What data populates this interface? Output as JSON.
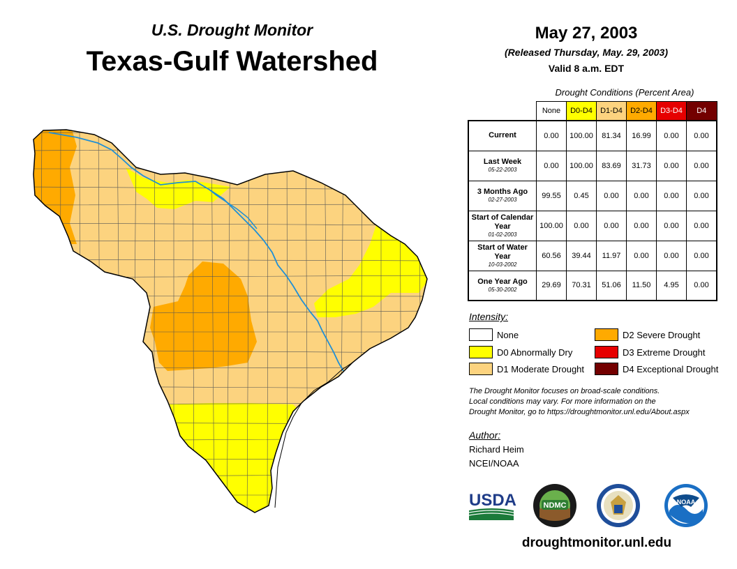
{
  "header": {
    "subtitle": "U.S. Drought Monitor",
    "title": "Texas-Gulf Watershed",
    "date": "May 27, 2003",
    "released": "(Released Thursday, May. 29, 2003)",
    "valid": "Valid 8 a.m. EDT"
  },
  "table": {
    "caption": "Drought Conditions (Percent Area)",
    "columns": [
      {
        "label": "None",
        "color": "#ffffff",
        "text_color": "#000000"
      },
      {
        "label": "D0-D4",
        "color": "#ffff00",
        "text_color": "#000000"
      },
      {
        "label": "D1-D4",
        "color": "#fcd37f",
        "text_color": "#000000"
      },
      {
        "label": "D2-D4",
        "color": "#ffaa00",
        "text_color": "#000000"
      },
      {
        "label": "D3-D4",
        "color": "#e60000",
        "text_color": "#ffffff"
      },
      {
        "label": "D4",
        "color": "#730000",
        "text_color": "#ffffff"
      }
    ],
    "rows": [
      {
        "label": "Current",
        "date": "",
        "values": [
          "0.00",
          "100.00",
          "81.34",
          "16.99",
          "0.00",
          "0.00"
        ]
      },
      {
        "label": "Last Week",
        "date": "05-22-2003",
        "values": [
          "0.00",
          "100.00",
          "83.69",
          "31.73",
          "0.00",
          "0.00"
        ]
      },
      {
        "label": "3 Months Ago",
        "date": "02-27-2003",
        "values": [
          "99.55",
          "0.45",
          "0.00",
          "0.00",
          "0.00",
          "0.00"
        ]
      },
      {
        "label": "Start of Calendar Year",
        "date": "01-02-2003",
        "values": [
          "100.00",
          "0.00",
          "0.00",
          "0.00",
          "0.00",
          "0.00"
        ]
      },
      {
        "label": "Start of Water Year",
        "date": "10-03-2002",
        "values": [
          "60.56",
          "39.44",
          "11.97",
          "0.00",
          "0.00",
          "0.00"
        ]
      },
      {
        "label": "One Year Ago",
        "date": "05-30-2002",
        "values": [
          "29.69",
          "70.31",
          "51.06",
          "11.50",
          "4.95",
          "0.00"
        ]
      }
    ]
  },
  "legend": {
    "title": "Intensity:",
    "items": [
      {
        "label": "None",
        "color": "#ffffff"
      },
      {
        "label": "D0 Abnormally Dry",
        "color": "#ffff00"
      },
      {
        "label": "D1 Moderate Drought",
        "color": "#fcd37f"
      },
      {
        "label": "D2 Severe Drought",
        "color": "#ffaa00"
      },
      {
        "label": "D3 Extreme Drought",
        "color": "#e60000"
      },
      {
        "label": "D4 Exceptional Drought",
        "color": "#730000"
      }
    ]
  },
  "note": {
    "line1": "The Drought Monitor focuses on broad-scale conditions.",
    "line2": "Local conditions may vary. For more information on the",
    "line3": "Drought Monitor, go to https://droughtmonitor.unl.edu/About.aspx"
  },
  "author": {
    "title": "Author:",
    "name": "Richard Heim",
    "org": "NCEI/NOAA"
  },
  "logos": {
    "usda": "USDA",
    "ndmc": "NDMC",
    "noaa": "NOAA"
  },
  "footer": {
    "url": "droughtmonitor.unl.edu"
  },
  "map_colors": {
    "d0": "#ffff00",
    "d1": "#fcd37f",
    "d2": "#ffaa00",
    "border": "#000000",
    "river": "#1f8fd6",
    "county_line": "#555555"
  }
}
